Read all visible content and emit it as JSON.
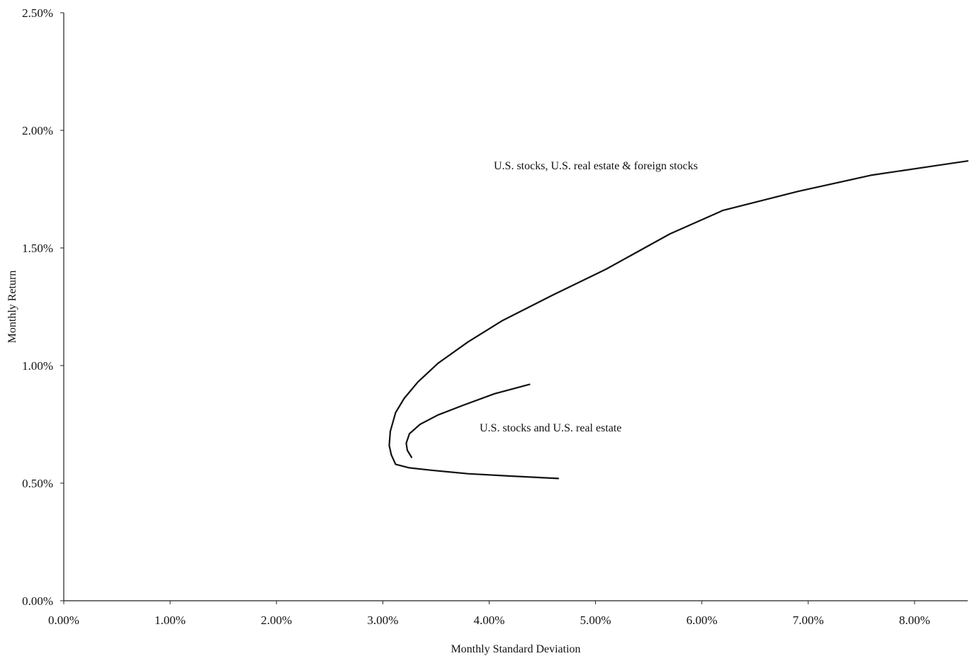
{
  "chart_data": {
    "type": "line",
    "title": "",
    "xlabel": "Monthly Standard Deviation",
    "ylabel": "Monthly Return",
    "xlim": [
      0.0,
      8.5
    ],
    "ylim": [
      0.0,
      2.5
    ],
    "x_ticks": [
      "0.00%",
      "1.00%",
      "2.00%",
      "3.00%",
      "4.00%",
      "5.00%",
      "6.00%",
      "7.00%",
      "8.00%"
    ],
    "y_ticks": [
      "0.00%",
      "0.50%",
      "1.00%",
      "1.50%",
      "2.00%",
      "2.50%"
    ],
    "grid": false,
    "legend": "none",
    "series": [
      {
        "name": "U.S. stocks, U.S. real estate & foreign stocks",
        "x": [
          4.65,
          4.2,
          3.8,
          3.45,
          3.25,
          3.12,
          3.08,
          3.06,
          3.07,
          3.12,
          3.2,
          3.33,
          3.52,
          3.8,
          4.12,
          4.6,
          5.1,
          5.7,
          6.2,
          6.9,
          7.6,
          8.2,
          8.5
        ],
        "y": [
          0.52,
          0.53,
          0.54,
          0.555,
          0.565,
          0.58,
          0.62,
          0.66,
          0.72,
          0.8,
          0.86,
          0.93,
          1.01,
          1.1,
          1.19,
          1.3,
          1.41,
          1.56,
          1.66,
          1.74,
          1.81,
          1.85,
          1.87
        ]
      },
      {
        "name": "U.S. stocks and U.S. real estate",
        "x": [
          3.27,
          3.23,
          3.22,
          3.25,
          3.35,
          3.52,
          3.75,
          4.05,
          4.38
        ],
        "y": [
          0.61,
          0.64,
          0.67,
          0.71,
          0.75,
          0.79,
          0.83,
          0.88,
          0.92
        ]
      }
    ],
    "annotations": [
      {
        "text": "U.S. stocks, U.S. real estate & foreign stocks",
        "series": 0
      },
      {
        "text": "U.S. stocks and U.S. real estate",
        "series": 1
      }
    ]
  }
}
